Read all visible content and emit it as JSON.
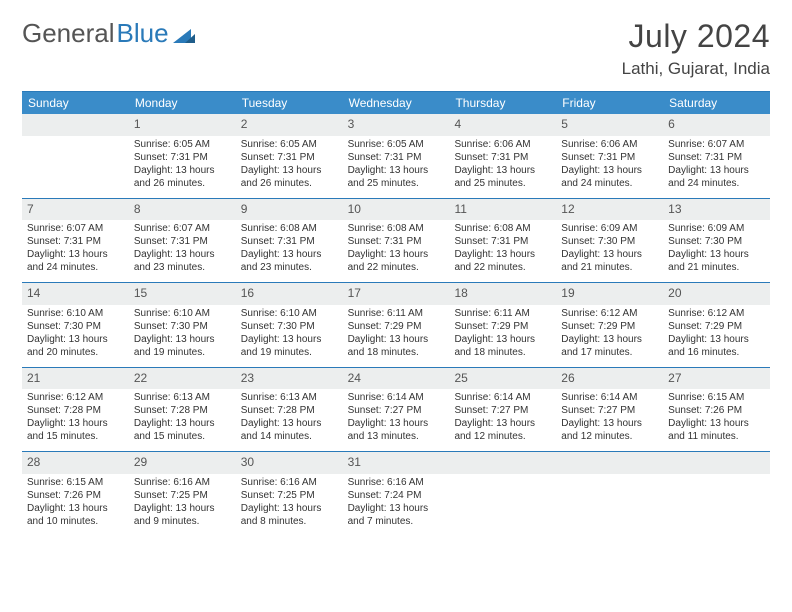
{
  "logo": {
    "text1": "General",
    "text2": "Blue"
  },
  "title": "July 2024",
  "location": "Lathi, Gujarat, India",
  "colors": {
    "header_bg": "#3a8cc9",
    "border": "#2a7ab9",
    "daynum_bg": "#eceeee",
    "text": "#333333"
  },
  "day_names": [
    "Sunday",
    "Monday",
    "Tuesday",
    "Wednesday",
    "Thursday",
    "Friday",
    "Saturday"
  ],
  "start_offset": 1,
  "days": [
    {
      "n": 1,
      "sr": "6:05 AM",
      "ss": "7:31 PM",
      "dl": "13 hours and 26 minutes."
    },
    {
      "n": 2,
      "sr": "6:05 AM",
      "ss": "7:31 PM",
      "dl": "13 hours and 26 minutes."
    },
    {
      "n": 3,
      "sr": "6:05 AM",
      "ss": "7:31 PM",
      "dl": "13 hours and 25 minutes."
    },
    {
      "n": 4,
      "sr": "6:06 AM",
      "ss": "7:31 PM",
      "dl": "13 hours and 25 minutes."
    },
    {
      "n": 5,
      "sr": "6:06 AM",
      "ss": "7:31 PM",
      "dl": "13 hours and 24 minutes."
    },
    {
      "n": 6,
      "sr": "6:07 AM",
      "ss": "7:31 PM",
      "dl": "13 hours and 24 minutes."
    },
    {
      "n": 7,
      "sr": "6:07 AM",
      "ss": "7:31 PM",
      "dl": "13 hours and 24 minutes."
    },
    {
      "n": 8,
      "sr": "6:07 AM",
      "ss": "7:31 PM",
      "dl": "13 hours and 23 minutes."
    },
    {
      "n": 9,
      "sr": "6:08 AM",
      "ss": "7:31 PM",
      "dl": "13 hours and 23 minutes."
    },
    {
      "n": 10,
      "sr": "6:08 AM",
      "ss": "7:31 PM",
      "dl": "13 hours and 22 minutes."
    },
    {
      "n": 11,
      "sr": "6:08 AM",
      "ss": "7:31 PM",
      "dl": "13 hours and 22 minutes."
    },
    {
      "n": 12,
      "sr": "6:09 AM",
      "ss": "7:30 PM",
      "dl": "13 hours and 21 minutes."
    },
    {
      "n": 13,
      "sr": "6:09 AM",
      "ss": "7:30 PM",
      "dl": "13 hours and 21 minutes."
    },
    {
      "n": 14,
      "sr": "6:10 AM",
      "ss": "7:30 PM",
      "dl": "13 hours and 20 minutes."
    },
    {
      "n": 15,
      "sr": "6:10 AM",
      "ss": "7:30 PM",
      "dl": "13 hours and 19 minutes."
    },
    {
      "n": 16,
      "sr": "6:10 AM",
      "ss": "7:30 PM",
      "dl": "13 hours and 19 minutes."
    },
    {
      "n": 17,
      "sr": "6:11 AM",
      "ss": "7:29 PM",
      "dl": "13 hours and 18 minutes."
    },
    {
      "n": 18,
      "sr": "6:11 AM",
      "ss": "7:29 PM",
      "dl": "13 hours and 18 minutes."
    },
    {
      "n": 19,
      "sr": "6:12 AM",
      "ss": "7:29 PM",
      "dl": "13 hours and 17 minutes."
    },
    {
      "n": 20,
      "sr": "6:12 AM",
      "ss": "7:29 PM",
      "dl": "13 hours and 16 minutes."
    },
    {
      "n": 21,
      "sr": "6:12 AM",
      "ss": "7:28 PM",
      "dl": "13 hours and 15 minutes."
    },
    {
      "n": 22,
      "sr": "6:13 AM",
      "ss": "7:28 PM",
      "dl": "13 hours and 15 minutes."
    },
    {
      "n": 23,
      "sr": "6:13 AM",
      "ss": "7:28 PM",
      "dl": "13 hours and 14 minutes."
    },
    {
      "n": 24,
      "sr": "6:14 AM",
      "ss": "7:27 PM",
      "dl": "13 hours and 13 minutes."
    },
    {
      "n": 25,
      "sr": "6:14 AM",
      "ss": "7:27 PM",
      "dl": "13 hours and 12 minutes."
    },
    {
      "n": 26,
      "sr": "6:14 AM",
      "ss": "7:27 PM",
      "dl": "13 hours and 12 minutes."
    },
    {
      "n": 27,
      "sr": "6:15 AM",
      "ss": "7:26 PM",
      "dl": "13 hours and 11 minutes."
    },
    {
      "n": 28,
      "sr": "6:15 AM",
      "ss": "7:26 PM",
      "dl": "13 hours and 10 minutes."
    },
    {
      "n": 29,
      "sr": "6:16 AM",
      "ss": "7:25 PM",
      "dl": "13 hours and 9 minutes."
    },
    {
      "n": 30,
      "sr": "6:16 AM",
      "ss": "7:25 PM",
      "dl": "13 hours and 8 minutes."
    },
    {
      "n": 31,
      "sr": "6:16 AM",
      "ss": "7:24 PM",
      "dl": "13 hours and 7 minutes."
    }
  ],
  "labels": {
    "sunrise": "Sunrise:",
    "sunset": "Sunset:",
    "daylight": "Daylight:"
  }
}
